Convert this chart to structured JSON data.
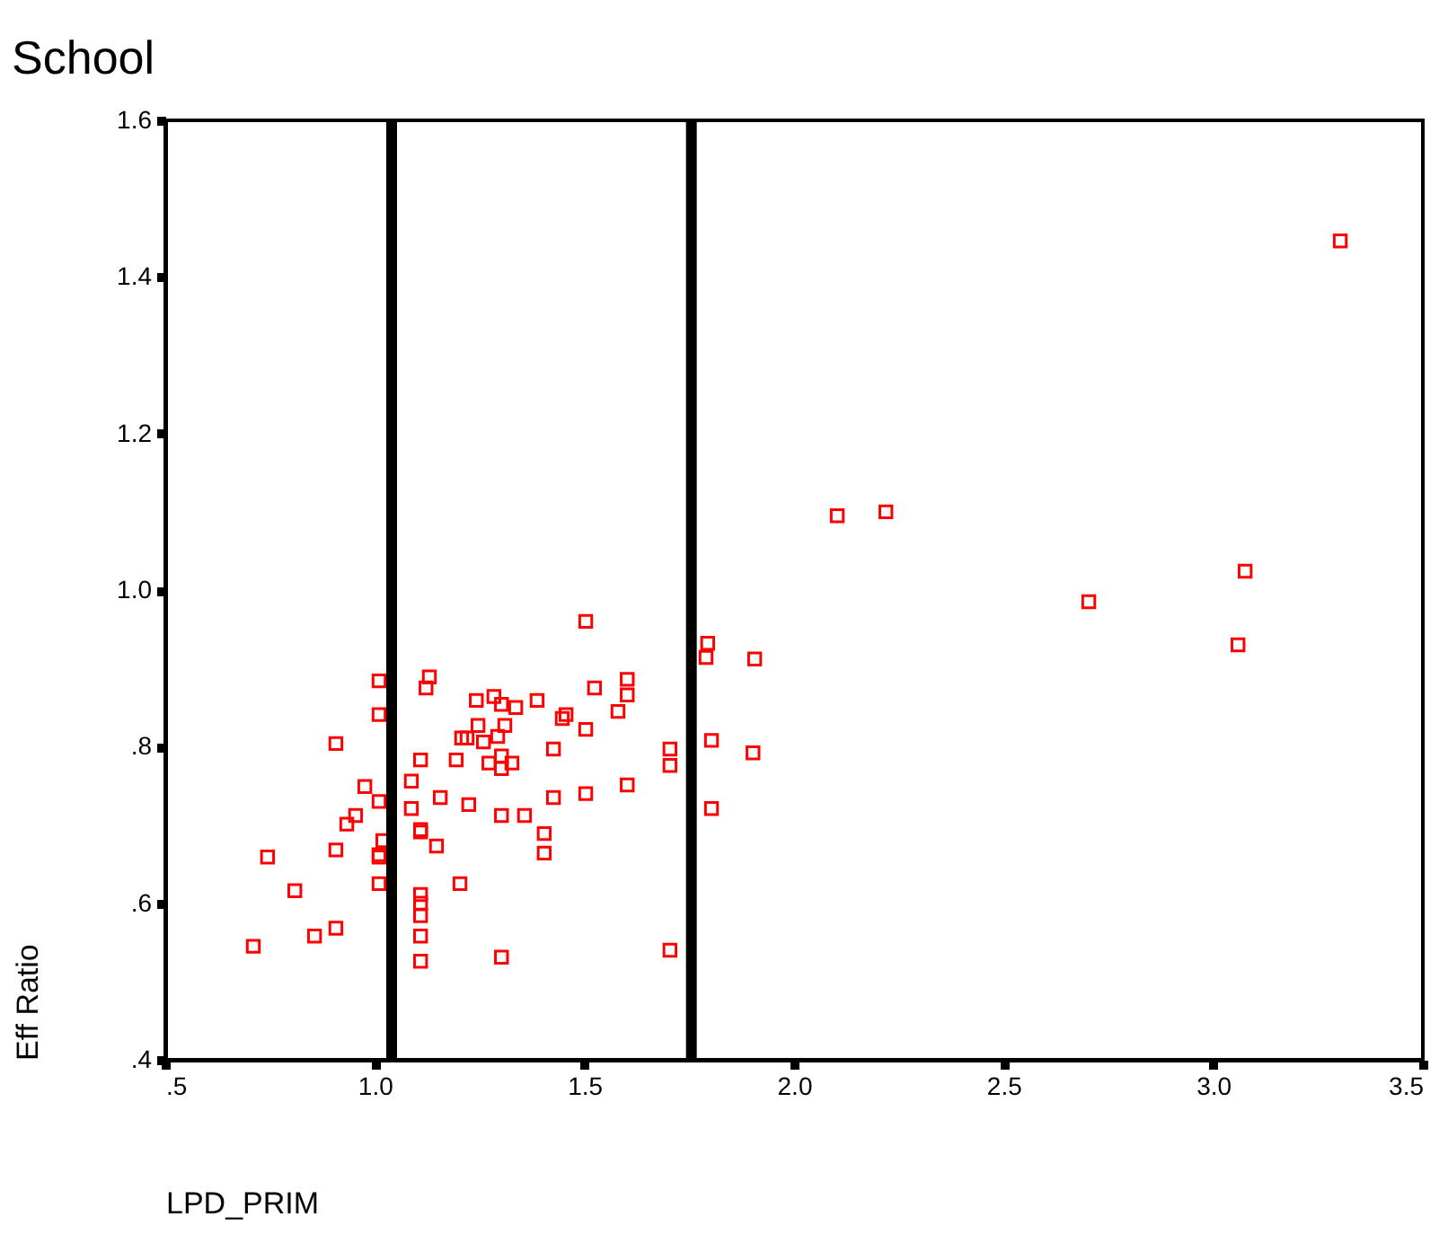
{
  "chart_data": {
    "type": "scatter",
    "title": "School",
    "xlabel": "LPD_PRIM",
    "ylabel": "Eff Ratio",
    "xlim": [
      0.5,
      3.5
    ],
    "ylim": [
      0.4,
      1.6
    ],
    "xticks": [
      {
        "value": 0.5,
        "label": ".5"
      },
      {
        "value": 1.0,
        "label": "1.0"
      },
      {
        "value": 1.5,
        "label": "1.5"
      },
      {
        "value": 2.0,
        "label": "2.0"
      },
      {
        "value": 2.5,
        "label": "2.5"
      },
      {
        "value": 3.0,
        "label": "3.0"
      },
      {
        "value": 3.5,
        "label": "3.5"
      }
    ],
    "yticks": [
      {
        "value": 0.4,
        "label": ".4"
      },
      {
        "value": 0.6,
        "label": ".6"
      },
      {
        "value": 0.8,
        "label": ".8"
      },
      {
        "value": 1.0,
        "label": "1.0"
      },
      {
        "value": 1.2,
        "label": "1.2"
      },
      {
        "value": 1.4,
        "label": "1.4"
      },
      {
        "value": 1.6,
        "label": "1.6"
      }
    ],
    "grid": false,
    "marker": "square",
    "ref_lines": [
      {
        "axis": "x",
        "value": 1.04,
        "color": "#000000"
      },
      {
        "axis": "x",
        "value": 1.755,
        "color": "#000000"
      }
    ],
    "series": [
      {
        "color": "#ff0000",
        "x": [
          0.71,
          0.744,
          0.809,
          0.856,
          0.907,
          0.907,
          0.907,
          0.933,
          0.954,
          0.976,
          1.01,
          1.01,
          1.01,
          1.01,
          1.01,
          1.01,
          1.019,
          1.087,
          1.087,
          1.109,
          1.109,
          1.109,
          1.109,
          1.109,
          1.109,
          1.109,
          1.109,
          1.122,
          1.13,
          1.147,
          1.156,
          1.194,
          1.203,
          1.207,
          1.22,
          1.224,
          1.242,
          1.246,
          1.259,
          1.272,
          1.284,
          1.293,
          1.302,
          1.302,
          1.302,
          1.302,
          1.302,
          1.31,
          1.327,
          1.336,
          1.357,
          1.387,
          1.404,
          1.404,
          1.426,
          1.426,
          1.447,
          1.456,
          1.503,
          1.503,
          1.503,
          1.524,
          1.58,
          1.602,
          1.602,
          1.602,
          1.704,
          1.704,
          1.704,
          1.79,
          1.794,
          1.803,
          1.803,
          1.902,
          1.906,
          2.103,
          2.219,
          2.703,
          3.059,
          3.076,
          3.303
        ],
        "values": [
          0.545,
          0.659,
          0.616,
          0.558,
          0.568,
          0.804,
          0.668,
          0.701,
          0.712,
          0.749,
          0.884,
          0.841,
          0.73,
          0.662,
          0.659,
          0.625,
          0.68,
          0.756,
          0.721,
          0.783,
          0.694,
          0.691,
          0.611,
          0.6,
          0.584,
          0.558,
          0.526,
          0.875,
          0.889,
          0.673,
          0.735,
          0.783,
          0.625,
          0.811,
          0.811,
          0.726,
          0.859,
          0.827,
          0.806,
          0.779,
          0.864,
          0.813,
          0.854,
          0.788,
          0.772,
          0.712,
          0.531,
          0.827,
          0.779,
          0.85,
          0.712,
          0.859,
          0.689,
          0.664,
          0.797,
          0.735,
          0.836,
          0.841,
          0.96,
          0.822,
          0.74,
          0.875,
          0.845,
          0.886,
          0.866,
          0.751,
          0.797,
          0.776,
          0.54,
          0.914,
          0.932,
          0.808,
          0.721,
          0.792,
          0.912,
          1.095,
          1.1,
          0.985,
          0.93,
          1.024,
          1.446
        ]
      }
    ]
  }
}
